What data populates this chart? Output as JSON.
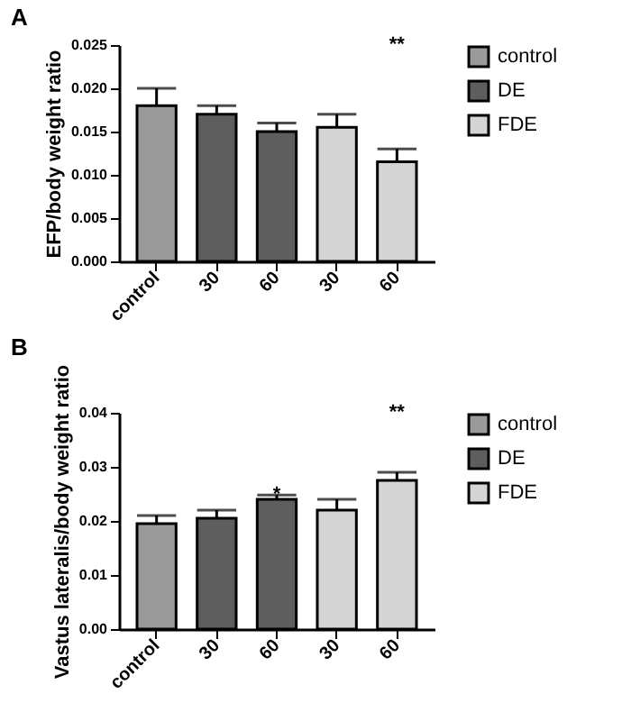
{
  "chart_data": [
    {
      "type": "bar",
      "title": "A",
      "ylabel": "EFP/body weight ratio",
      "categories": [
        "control",
        "30",
        "60",
        "30",
        "60"
      ],
      "series": [
        {
          "name": "control",
          "color": "#9a9a9a",
          "values": [
            0.018,
            null,
            null,
            null,
            null
          ],
          "errors": [
            [
              0.018,
              0.02
            ],
            null,
            null,
            null,
            null
          ]
        },
        {
          "name": "DE",
          "color": "#5e5e5e",
          "values": [
            null,
            0.017,
            0.015,
            null,
            null
          ],
          "errors": [
            null,
            [
              0.017,
              0.018
            ],
            [
              0.015,
              0.016
            ],
            null,
            null
          ]
        },
        {
          "name": "FDE",
          "color": "#d4d4d4",
          "values": [
            null,
            null,
            null,
            0.0155,
            0.0115
          ],
          "errors": [
            null,
            null,
            null,
            [
              0.0155,
              0.017
            ],
            [
              0.0115,
              0.013
            ]
          ]
        }
      ],
      "ylim": [
        0,
        0.025
      ],
      "yticks": [
        {
          "value": 0,
          "label": "0.000"
        },
        {
          "value": 0.005,
          "label": "0.005"
        },
        {
          "value": 0.01,
          "label": "0.010"
        },
        {
          "value": 0.015,
          "label": "0.015"
        },
        {
          "value": 0.02,
          "label": "0.020"
        },
        {
          "value": 0.025,
          "label": "0.025"
        }
      ],
      "annotations": [
        "**"
      ],
      "legend": "top right"
    },
    {
      "type": "bar",
      "title": "B",
      "ylabel": "Vastus lateralis/body weight ratio",
      "categories": [
        "control",
        "30",
        "60",
        "30",
        "60"
      ],
      "series": [
        {
          "name": "control",
          "color": "#9a9a9a",
          "values": [
            0.0195,
            null,
            null,
            null,
            null
          ],
          "errors": [
            [
              0.0195,
              0.021
            ],
            null,
            null,
            null,
            null
          ]
        },
        {
          "name": "DE",
          "color": "#5e5e5e",
          "values": [
            null,
            0.0205,
            0.024,
            null,
            null
          ],
          "errors": [
            null,
            [
              0.0205,
              0.022
            ],
            [
              0.024,
              0.0248
            ],
            null,
            null
          ]
        },
        {
          "name": "FDE",
          "color": "#d4d4d4",
          "values": [
            null,
            null,
            null,
            0.022,
            0.0275
          ],
          "errors": [
            null,
            null,
            null,
            [
              0.022,
              0.024
            ],
            [
              0.0275,
              0.029
            ]
          ]
        }
      ],
      "ylim": [
        0,
        0.04
      ],
      "yticks": [
        {
          "value": 0,
          "label": "0.00"
        },
        {
          "value": 0.01,
          "label": "0.01"
        },
        {
          "value": 0.02,
          "label": "0.02"
        },
        {
          "value": 0.03,
          "label": "0.03"
        },
        {
          "value": 0.04,
          "label": "0.04"
        }
      ],
      "annotations": [
        {
          "text": "*",
          "x": "60",
          "y": 0.0248
        },
        "**"
      ],
      "legend": "top right"
    }
  ]
}
